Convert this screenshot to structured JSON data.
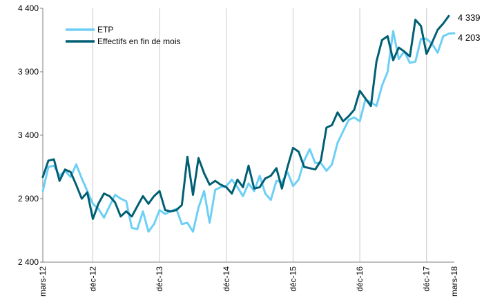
{
  "chart_data": {
    "type": "line",
    "x_ticks": [
      "mars-12",
      "déc-12",
      "déc-13",
      "déc-14",
      "déc-15",
      "déc-16",
      "déc-17",
      "mars-18"
    ],
    "y_ticks": [
      "2 400",
      "2 900",
      "3 400",
      "3 900",
      "4 400"
    ],
    "ylim": [
      2400,
      4400
    ],
    "grid": "vertical",
    "legend_position": "top-left",
    "end_labels": [
      "4 339",
      "4 203"
    ],
    "series": [
      {
        "name": "ETP",
        "color": "#6dcff6",
        "values": [
          2960,
          3150,
          3160,
          3080,
          3120,
          3070,
          3170,
          3060,
          2960,
          2860,
          2820,
          2750,
          2840,
          2930,
          2900,
          2880,
          2670,
          2660,
          2800,
          2640,
          2700,
          2810,
          2780,
          2800,
          2820,
          2700,
          2710,
          2640,
          2830,
          2960,
          2710,
          2970,
          2990,
          3000,
          3050,
          2990,
          2920,
          3020,
          2960,
          3080,
          2940,
          2890,
          3040,
          3030,
          3110,
          3000,
          3050,
          3200,
          3290,
          3180,
          3180,
          3120,
          3170,
          3340,
          3430,
          3520,
          3540,
          3510,
          3680,
          3660,
          3630,
          3790,
          3900,
          4220,
          4000,
          4060,
          3970,
          3980,
          4160,
          4160,
          4120,
          4050,
          4180,
          4200,
          4203
        ]
      },
      {
        "name": "Effectifs en fin de mois",
        "color": "#005f73",
        "values": [
          3070,
          3200,
          3210,
          3040,
          3130,
          3110,
          3010,
          2900,
          2950,
          2740,
          2860,
          2940,
          2920,
          2870,
          2760,
          2800,
          2760,
          2840,
          2920,
          2860,
          2920,
          2960,
          2810,
          2800,
          2810,
          2850,
          3230,
          2930,
          3220,
          3100,
          3010,
          3040,
          3010,
          2990,
          2940,
          3050,
          2990,
          3160,
          2980,
          2990,
          3060,
          3080,
          3140,
          2980,
          3150,
          3300,
          3270,
          3150,
          3140,
          3130,
          3200,
          3460,
          3480,
          3580,
          3510,
          3550,
          3600,
          3750,
          3690,
          3630,
          3980,
          4150,
          4180,
          3990,
          4090,
          4060,
          4020,
          4310,
          4260,
          4040,
          4130,
          4230,
          4280,
          4339
        ]
      }
    ]
  }
}
